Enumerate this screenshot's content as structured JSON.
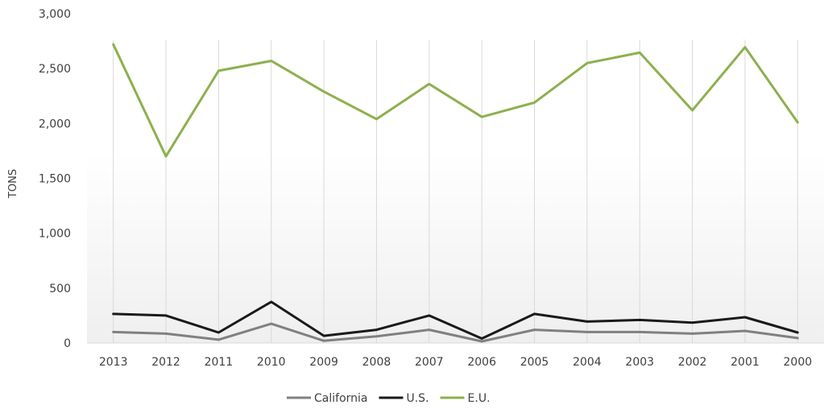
{
  "chart_data": {
    "type": "line",
    "ylabel": "TONS",
    "ylim": [
      0,
      3000
    ],
    "y_ticks": [
      0,
      500,
      1000,
      1500,
      2000,
      2500,
      3000
    ],
    "y_tick_labels": [
      "0",
      "500",
      "1,000",
      "1,500",
      "2,000",
      "2,500",
      "3,000"
    ],
    "categories": [
      "2013",
      "2012",
      "2011",
      "2010",
      "2009",
      "2008",
      "2007",
      "2006",
      "2005",
      "2004",
      "2003",
      "2002",
      "2001",
      "2000"
    ],
    "grid": "vertical",
    "legend_position": "bottom",
    "series": [
      {
        "name": "California",
        "color": "#808080",
        "values": [
          100,
          85,
          30,
          175,
          20,
          60,
          120,
          15,
          120,
          100,
          100,
          85,
          110,
          45
        ]
      },
      {
        "name": "U.S.",
        "color": "#1a1a1a",
        "values": [
          265,
          250,
          95,
          375,
          65,
          120,
          250,
          40,
          265,
          195,
          210,
          185,
          235,
          95
        ]
      },
      {
        "name": "E.U.",
        "color": "#8db04e",
        "values": [
          2720,
          1700,
          2480,
          2570,
          2290,
          2040,
          2360,
          2060,
          2190,
          2550,
          2645,
          2120,
          2695,
          2010
        ]
      }
    ]
  }
}
